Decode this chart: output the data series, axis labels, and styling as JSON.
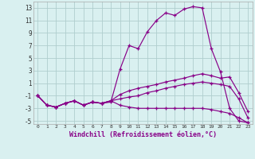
{
  "xlabel": "Windchill (Refroidissement éolien,°C)",
  "background_color": "#d9f0f0",
  "grid_color": "#b0cece",
  "line_color": "#880088",
  "xlim": [
    -0.5,
    23.5
  ],
  "ylim": [
    -5.5,
    14.0
  ],
  "xticks": [
    0,
    1,
    2,
    3,
    4,
    5,
    6,
    7,
    8,
    9,
    10,
    11,
    12,
    13,
    14,
    15,
    16,
    17,
    18,
    19,
    20,
    21,
    22,
    23
  ],
  "yticks": [
    -5,
    -3,
    -1,
    1,
    3,
    5,
    7,
    9,
    11,
    13
  ],
  "hours": [
    0,
    1,
    2,
    3,
    4,
    5,
    6,
    7,
    8,
    9,
    10,
    11,
    12,
    13,
    14,
    15,
    16,
    17,
    18,
    19,
    20,
    21,
    22,
    23
  ],
  "line1": [
    -1.0,
    -2.5,
    -2.8,
    -2.2,
    -1.8,
    -2.5,
    -2.0,
    -2.2,
    -2.0,
    3.2,
    7.0,
    6.5,
    9.2,
    11.0,
    12.2,
    11.8,
    12.8,
    13.2,
    13.0,
    6.5,
    2.8,
    -3.0,
    -5.0,
    -5.3
  ],
  "line2": [
    -1.0,
    -2.5,
    -2.8,
    -2.2,
    -1.8,
    -2.5,
    -2.0,
    -2.2,
    -1.8,
    -0.8,
    -0.2,
    0.2,
    0.5,
    0.8,
    1.2,
    1.5,
    1.8,
    2.2,
    2.5,
    2.2,
    1.8,
    2.0,
    -0.5,
    -3.5
  ],
  "line3": [
    -1.0,
    -2.5,
    -2.8,
    -2.2,
    -1.8,
    -2.5,
    -2.0,
    -2.2,
    -1.8,
    -1.5,
    -1.2,
    -1.0,
    -0.5,
    -0.2,
    0.2,
    0.5,
    0.8,
    1.0,
    1.2,
    1.0,
    0.8,
    0.5,
    -1.5,
    -4.5
  ],
  "line4": [
    -1.0,
    -2.5,
    -2.8,
    -2.2,
    -1.8,
    -2.5,
    -2.0,
    -2.2,
    -1.8,
    -2.5,
    -2.8,
    -3.0,
    -3.0,
    -3.0,
    -3.0,
    -3.0,
    -3.0,
    -3.0,
    -3.0,
    -3.2,
    -3.5,
    -3.8,
    -4.5,
    -5.3
  ]
}
